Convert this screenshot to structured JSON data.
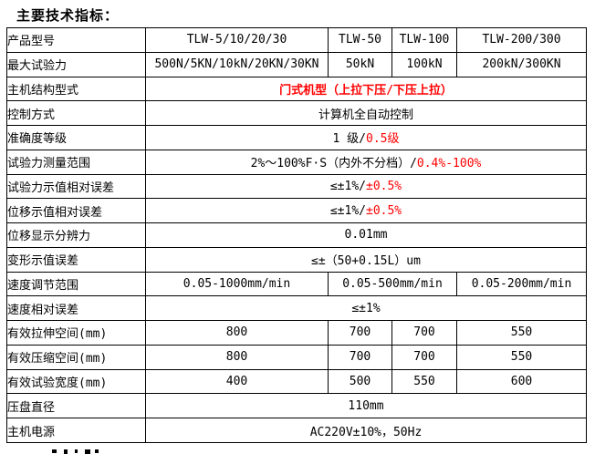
{
  "page_title": "主要技术指标：",
  "colors": {
    "red": "#ff0000",
    "text": "#000000",
    "border": "#000000",
    "background": "#ffffff"
  },
  "table": {
    "rows": [
      {
        "label": "产品型号",
        "cells": [
          {
            "t": "TLW-5/10/20/30"
          },
          {
            "t": "TLW-50"
          },
          {
            "t": "TLW-100"
          },
          {
            "t": "TLW-200/300"
          }
        ]
      },
      {
        "label": "最大试验力",
        "cells": [
          {
            "t": "500N/5KN/10kN/20KN/30KN"
          },
          {
            "t": "50kN"
          },
          {
            "t": "100kN"
          },
          {
            "t": "200kN/300KN"
          }
        ]
      },
      {
        "label": "主机结构型式",
        "cells": [
          {
            "span": 4,
            "bold": true,
            "segs": [
              {
                "t": "门式机型（上拉下压/下压上拉）",
                "red": true
              }
            ]
          }
        ]
      },
      {
        "label": "控制方式",
        "cells": [
          {
            "span": 4,
            "t": "计算机全自动控制"
          }
        ]
      },
      {
        "label": "准确度等级",
        "cells": [
          {
            "span": 4,
            "segs": [
              {
                "t": "1 级/"
              },
              {
                "t": "0.5级",
                "red": true
              }
            ]
          }
        ]
      },
      {
        "label": "试验力测量范围",
        "cells": [
          {
            "span": 4,
            "segs": [
              {
                "t": "2%～100%F·S（内外不分档）/"
              },
              {
                "t": "0.4%-100%",
                "red": true
              }
            ]
          }
        ]
      },
      {
        "label": "试验力示值相对误差",
        "cells": [
          {
            "span": 4,
            "segs": [
              {
                "t": "≤±1%/"
              },
              {
                "t": "±0.5%",
                "red": true
              }
            ]
          }
        ]
      },
      {
        "label": "位移示值相对误差",
        "cells": [
          {
            "span": 4,
            "segs": [
              {
                "t": "≤±1%/"
              },
              {
                "t": "±0.5%",
                "red": true
              }
            ]
          }
        ]
      },
      {
        "label": "位移显示分辨力",
        "cells": [
          {
            "span": 4,
            "t": "0.01mm"
          }
        ]
      },
      {
        "label": "变形示值误差",
        "cells": [
          {
            "span": 4,
            "t": "≤±（50+0.15L）um"
          }
        ]
      },
      {
        "label": "速度调节范围",
        "cells": [
          {
            "t": "0.05-1000mm/min"
          },
          {
            "span": 2,
            "t": "0.05-500mm/min"
          },
          {
            "t": "0.05-200mm/min"
          }
        ]
      },
      {
        "label": "速度相对误差",
        "cells": [
          {
            "span": 4,
            "t": "≤±1%"
          }
        ]
      },
      {
        "label": "有效拉伸空间(mm)",
        "cells": [
          {
            "t": "800"
          },
          {
            "t": "700"
          },
          {
            "t": "700"
          },
          {
            "t": "550"
          }
        ]
      },
      {
        "label": "有效压缩空间(mm)",
        "cells": [
          {
            "t": "800"
          },
          {
            "t": "700"
          },
          {
            "t": "700"
          },
          {
            "t": "550"
          }
        ]
      },
      {
        "label": "有效试验宽度(mm)",
        "cells": [
          {
            "t": "400"
          },
          {
            "t": "500"
          },
          {
            "t": "550"
          },
          {
            "t": "600"
          }
        ]
      },
      {
        "label": "压盘直径",
        "cells": [
          {
            "span": 4,
            "t": "110mm"
          }
        ]
      },
      {
        "label": "主机电源",
        "cells": [
          {
            "span": 4,
            "t": "AC220V±10%，50Hz"
          }
        ]
      }
    ]
  }
}
